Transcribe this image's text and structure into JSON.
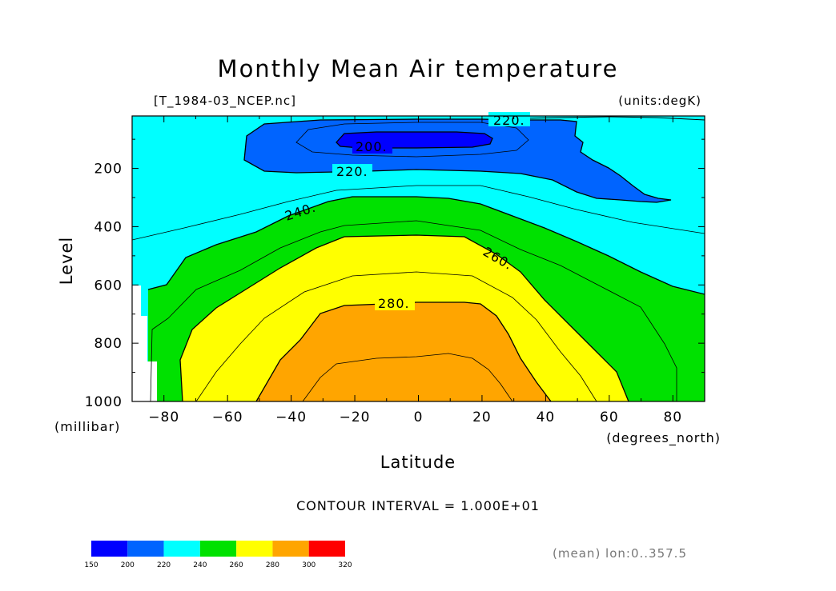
{
  "chart_data": {
    "type": "contour",
    "title": "Monthly Mean Air temperature",
    "file_label": "[T_1984-03_NCEP.nc]",
    "units_label": "(units:degK)",
    "xlabel": "Latitude",
    "ylabel": "Level",
    "x_unit": "(degrees_north)",
    "y_unit": "(millibar)",
    "x_ticks": [
      "-80",
      "-60",
      "-40",
      "-20",
      "0",
      "20",
      "40",
      "60",
      "80"
    ],
    "y_ticks": [
      "200",
      "400",
      "600",
      "800",
      "1000"
    ],
    "xlim": [
      -90,
      90
    ],
    "ylim": [
      1000,
      20
    ],
    "y_axis_inverted": true,
    "contour_interval_text": "CONTOUR INTERVAL = 1.000E+01",
    "contour_labels": [
      "220.",
      "200.",
      "220.",
      "240.",
      "260.",
      "280."
    ],
    "averaging_note": "(mean) lon:0..357.5",
    "colorbar": {
      "levels": [
        "150",
        "200",
        "220",
        "240",
        "260",
        "280",
        "300",
        "320"
      ],
      "colors": [
        "#0000ff",
        "#0064ff",
        "#00ffff",
        "#00e100",
        "#ffff00",
        "#ffa500",
        "#ff0000"
      ]
    },
    "fill_colors": {
      "lt200": "#0000ff",
      "200_220": "#0064ff",
      "220_240": "#00ffff",
      "240_260": "#00e100",
      "260_280": "#ffff00",
      "280_300": "#ffa500",
      "missing": "#ffffff"
    }
  }
}
